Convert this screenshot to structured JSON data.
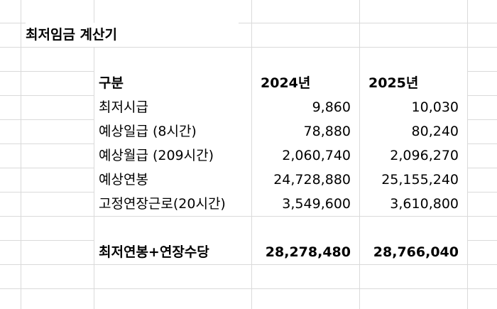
{
  "sheet": {
    "title": "최저임금 계산기",
    "header": {
      "label": "구분",
      "col1": "2024년",
      "col2": "2025년"
    },
    "rows": [
      {
        "label": "최저시급",
        "y2024": "9,860",
        "y2025": "10,030"
      },
      {
        "label": "예상일급 (8시간)",
        "y2024": "78,880",
        "y2025": "80,240"
      },
      {
        "label": "예상월급 (209시간)",
        "y2024": "2,060,740",
        "y2025": "2,096,270"
      },
      {
        "label": "예상연봉",
        "y2024": "24,728,880",
        "y2025": "25,155,240"
      },
      {
        "label": "고정연장근로(20시간)",
        "y2024": "3,549,600",
        "y2025": "3,610,800"
      }
    ],
    "total": {
      "label": "최저연봉+연장수당",
      "y2024": "28,278,480",
      "y2025": "28,766,040"
    }
  }
}
